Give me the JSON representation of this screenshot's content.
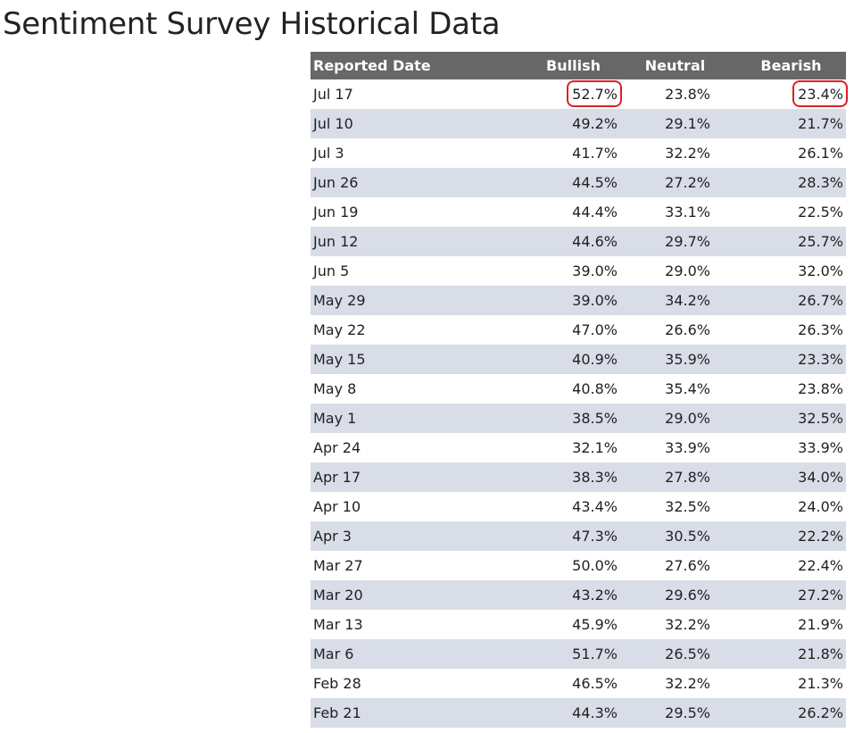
{
  "title": "Sentiment Survey Historical Data",
  "table": {
    "headers": {
      "date": "Reported Date",
      "bullish": "Bullish",
      "neutral": "Neutral",
      "bearish": "Bearish"
    },
    "rows": [
      {
        "date": "Jul 17",
        "bullish": "52.7%",
        "neutral": "23.8%",
        "bearish": "23.4%"
      },
      {
        "date": "Jul 10",
        "bullish": "49.2%",
        "neutral": "29.1%",
        "bearish": "21.7%"
      },
      {
        "date": "Jul 3",
        "bullish": "41.7%",
        "neutral": "32.2%",
        "bearish": "26.1%"
      },
      {
        "date": "Jun 26",
        "bullish": "44.5%",
        "neutral": "27.2%",
        "bearish": "28.3%"
      },
      {
        "date": "Jun 19",
        "bullish": "44.4%",
        "neutral": "33.1%",
        "bearish": "22.5%"
      },
      {
        "date": "Jun 12",
        "bullish": "44.6%",
        "neutral": "29.7%",
        "bearish": "25.7%"
      },
      {
        "date": "Jun 5",
        "bullish": "39.0%",
        "neutral": "29.0%",
        "bearish": "32.0%"
      },
      {
        "date": "May 29",
        "bullish": "39.0%",
        "neutral": "34.2%",
        "bearish": "26.7%"
      },
      {
        "date": "May 22",
        "bullish": "47.0%",
        "neutral": "26.6%",
        "bearish": "26.3%"
      },
      {
        "date": "May 15",
        "bullish": "40.9%",
        "neutral": "35.9%",
        "bearish": "23.3%"
      },
      {
        "date": "May 8",
        "bullish": "40.8%",
        "neutral": "35.4%",
        "bearish": "23.8%"
      },
      {
        "date": "May 1",
        "bullish": "38.5%",
        "neutral": "29.0%",
        "bearish": "32.5%"
      },
      {
        "date": "Apr 24",
        "bullish": "32.1%",
        "neutral": "33.9%",
        "bearish": "33.9%"
      },
      {
        "date": "Apr 17",
        "bullish": "38.3%",
        "neutral": "27.8%",
        "bearish": "34.0%"
      },
      {
        "date": "Apr 10",
        "bullish": "43.4%",
        "neutral": "32.5%",
        "bearish": "24.0%"
      },
      {
        "date": "Apr 3",
        "bullish": "47.3%",
        "neutral": "30.5%",
        "bearish": "22.2%"
      },
      {
        "date": "Mar 27",
        "bullish": "50.0%",
        "neutral": "27.6%",
        "bearish": "22.4%"
      },
      {
        "date": "Mar 20",
        "bullish": "43.2%",
        "neutral": "29.6%",
        "bearish": "27.2%"
      },
      {
        "date": "Mar 13",
        "bullish": "45.9%",
        "neutral": "32.2%",
        "bearish": "21.9%"
      },
      {
        "date": "Mar 6",
        "bullish": "51.7%",
        "neutral": "26.5%",
        "bearish": "21.8%"
      },
      {
        "date": "Feb 28",
        "bullish": "46.5%",
        "neutral": "32.2%",
        "bearish": "21.3%"
      },
      {
        "date": "Feb 21",
        "bullish": "44.3%",
        "neutral": "29.5%",
        "bearish": "26.2%"
      }
    ]
  },
  "annotations": {
    "highlight_color": "#e01d26",
    "circled_cells": [
      {
        "row": 0,
        "column": "bullish"
      },
      {
        "row": 0,
        "column": "bearish"
      }
    ]
  },
  "colors": {
    "header_bg": "#676767",
    "header_text": "#ffffff",
    "stripe_bg": "#d8dde8",
    "row_bg": "#ffffff",
    "text": "#222222"
  }
}
